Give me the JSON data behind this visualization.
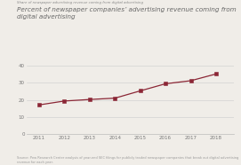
{
  "title_small": "Share of newspaper advertising revenue coming from digital advertising",
  "title_main": "Percent of newspaper companies’ advertising revenue coming from\ndigital advertising",
  "years": [
    2011,
    2012,
    2013,
    2014,
    2015,
    2016,
    2017,
    2018
  ],
  "values": [
    17.0,
    19.3,
    20.2,
    21.0,
    25.3,
    29.5,
    31.3,
    35.3
  ],
  "line_color": "#8B2635",
  "marker_color": "#8B2635",
  "background_color": "#f0ede8",
  "ylim": [
    0,
    40
  ],
  "yticks": [
    0,
    10,
    20,
    30,
    40
  ],
  "source_text": "Source: Pew Research Center analysis of year-end SEC filings for publicly traded newspaper companies that break out digital advertising revenue for each year."
}
